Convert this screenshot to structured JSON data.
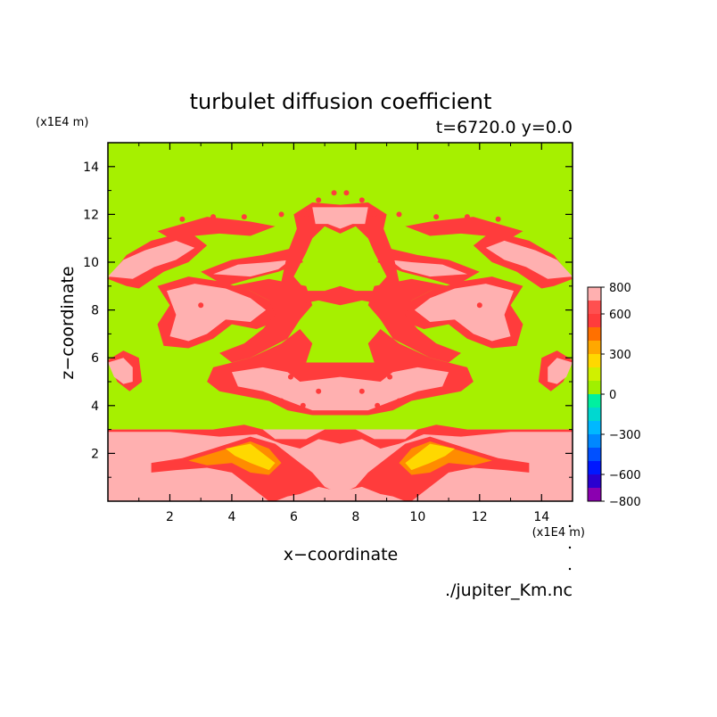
{
  "chart_data": {
    "type": "heatmap",
    "title": "turbulet diffusion coefficient",
    "subtitle": "t=6720.0 y=0.0",
    "xlabel": "x−coordinate",
    "ylabel": "z−coordinate",
    "x_unit": "(x1E4 m)",
    "y_unit": "(x1E4 m)",
    "xlim": [
      0,
      15
    ],
    "ylim": [
      0,
      15
    ],
    "x_ticks": [
      "2",
      "4",
      "6",
      "8",
      "10",
      "12",
      "14"
    ],
    "y_ticks": [
      "2",
      "4",
      "6",
      "8",
      "10",
      "12",
      "14"
    ],
    "source": "./jupiter_Km.nc",
    "colorbar": {
      "labels": [
        "800",
        "600",
        "300",
        "0",
        "−300",
        "−600",
        "−800"
      ],
      "levels": [
        -800,
        -700,
        -600,
        -500,
        -400,
        -300,
        -200,
        -100,
        0,
        100,
        200,
        300,
        400,
        500,
        600,
        700,
        800
      ],
      "colors": [
        "#8b00b0",
        "#2a00d0",
        "#0018ff",
        "#0050ff",
        "#0088ff",
        "#00b8ff",
        "#00d8d0",
        "#00f0a0",
        "#a0f000",
        "#d0f000",
        "#ffd800",
        "#ffa800",
        "#ff7000",
        "#ff3c3c",
        "#ff5050",
        "#ffb0b0"
      ]
    },
    "field_colors": {
      "background": "#a6f000",
      "level_yellow": "#ffd800",
      "level_orange": "#ff8c00",
      "level_red": "#ff3c3c",
      "level_pink": "#ffb0b0"
    },
    "symmetry": "mirror about x=7.5",
    "regions": [
      {
        "level": "red",
        "poly": [
          [
            0,
            9.3
          ],
          [
            0.6,
            10.3
          ],
          [
            1.4,
            10.9
          ],
          [
            2.6,
            11.3
          ],
          [
            3.2,
            10.7
          ],
          [
            2.6,
            10.0
          ],
          [
            1.8,
            9.6
          ],
          [
            1.0,
            8.9
          ],
          [
            0.6,
            9.0
          ]
        ]
      },
      {
        "level": "pink",
        "poly": [
          [
            0,
            9.4
          ],
          [
            0.5,
            10.1
          ],
          [
            1.2,
            10.5
          ],
          [
            2.2,
            10.9
          ],
          [
            2.8,
            10.6
          ],
          [
            2.2,
            10.1
          ],
          [
            1.5,
            9.8
          ],
          [
            0.8,
            9.3
          ]
        ]
      },
      {
        "level": "red",
        "poly": [
          [
            1.6,
            11.3
          ],
          [
            3.2,
            11.9
          ],
          [
            4.6,
            11.7
          ],
          [
            5.4,
            11.5
          ],
          [
            4.6,
            11.1
          ],
          [
            3.6,
            11.2
          ],
          [
            2.8,
            11.1
          ],
          [
            2.0,
            11.0
          ]
        ]
      },
      {
        "level": "red",
        "poly": [
          [
            3.0,
            9.6
          ],
          [
            4.0,
            10.1
          ],
          [
            5.0,
            10.3
          ],
          [
            6.0,
            10.6
          ],
          [
            6.3,
            10.0
          ],
          [
            5.5,
            9.6
          ],
          [
            4.6,
            9.3
          ],
          [
            3.8,
            9.0
          ]
        ]
      },
      {
        "level": "pink",
        "poly": [
          [
            3.4,
            9.5
          ],
          [
            4.2,
            9.9
          ],
          [
            5.2,
            10.0
          ],
          [
            5.9,
            10.1
          ],
          [
            5.5,
            9.7
          ],
          [
            4.6,
            9.4
          ]
        ]
      },
      {
        "level": "red",
        "poly": [
          [
            1.6,
            9.0
          ],
          [
            2.6,
            9.4
          ],
          [
            3.6,
            9.2
          ],
          [
            4.6,
            8.8
          ],
          [
            5.2,
            8.4
          ],
          [
            5.6,
            7.6
          ],
          [
            4.8,
            7.2
          ],
          [
            4.0,
            7.4
          ],
          [
            3.4,
            6.8
          ],
          [
            2.6,
            6.4
          ],
          [
            1.8,
            6.5
          ],
          [
            1.6,
            7.4
          ],
          [
            2.0,
            8.2
          ]
        ]
      },
      {
        "level": "pink",
        "poly": [
          [
            1.9,
            8.8
          ],
          [
            2.8,
            9.1
          ],
          [
            3.8,
            8.9
          ],
          [
            4.6,
            8.5
          ],
          [
            5.1,
            8.0
          ],
          [
            4.6,
            7.5
          ],
          [
            3.8,
            7.6
          ],
          [
            3.2,
            7.0
          ],
          [
            2.6,
            6.7
          ],
          [
            2.0,
            6.9
          ],
          [
            2.2,
            7.8
          ]
        ]
      },
      {
        "level": "red",
        "poly": [
          [
            0,
            5.9
          ],
          [
            0.5,
            6.3
          ],
          [
            1.0,
            6.0
          ],
          [
            1.1,
            5.0
          ],
          [
            0.7,
            4.6
          ],
          [
            0.3,
            5.0
          ]
        ]
      },
      {
        "level": "pink",
        "poly": [
          [
            0,
            5.8
          ],
          [
            0.5,
            6.0
          ],
          [
            0.8,
            5.6
          ],
          [
            0.8,
            5.0
          ],
          [
            0.5,
            4.9
          ],
          [
            0.2,
            5.2
          ]
        ]
      },
      {
        "level": "red",
        "poly": [
          [
            4.0,
            9.0
          ],
          [
            5.2,
            9.3
          ],
          [
            6.4,
            9.0
          ],
          [
            6.6,
            8.2
          ],
          [
            6.2,
            7.6
          ],
          [
            5.8,
            6.8
          ],
          [
            5.2,
            6.4
          ],
          [
            4.6,
            6.0
          ],
          [
            4.0,
            5.8
          ],
          [
            3.6,
            6.2
          ],
          [
            4.4,
            6.6
          ],
          [
            5.0,
            7.2
          ],
          [
            5.4,
            7.8
          ],
          [
            5.2,
            8.4
          ],
          [
            4.6,
            8.8
          ]
        ]
      },
      {
        "level": "red",
        "poly": [
          [
            6.0,
            12.0
          ],
          [
            6.6,
            12.5
          ],
          [
            7.5,
            12.4
          ],
          [
            7.5,
            11.2
          ],
          [
            7.0,
            11.5
          ],
          [
            6.6,
            11.0
          ],
          [
            6.4,
            10.4
          ],
          [
            6.0,
            9.4
          ],
          [
            6.4,
            8.8
          ],
          [
            7.0,
            8.8
          ],
          [
            7.5,
            9.0
          ],
          [
            7.5,
            8.2
          ],
          [
            6.8,
            8.4
          ],
          [
            6.0,
            8.2
          ],
          [
            5.6,
            9.2
          ],
          [
            5.8,
            10.4
          ],
          [
            6.1,
            11.4
          ]
        ]
      },
      {
        "level": "pink",
        "poly": [
          [
            6.6,
            12.3
          ],
          [
            7.5,
            12.3
          ],
          [
            7.5,
            11.4
          ],
          [
            7.1,
            11.6
          ],
          [
            6.7,
            11.6
          ]
        ]
      },
      {
        "level": "red",
        "poly": [
          [
            3.4,
            5.6
          ],
          [
            4.6,
            6.0
          ],
          [
            5.6,
            6.6
          ],
          [
            6.2,
            7.2
          ],
          [
            6.6,
            6.6
          ],
          [
            6.4,
            5.8
          ],
          [
            7.5,
            5.8
          ],
          [
            7.5,
            3.6
          ],
          [
            6.6,
            3.6
          ],
          [
            5.8,
            3.8
          ],
          [
            5.2,
            4.2
          ],
          [
            4.4,
            4.4
          ],
          [
            3.6,
            4.6
          ],
          [
            3.2,
            5.0
          ]
        ]
      },
      {
        "level": "pink",
        "poly": [
          [
            4.0,
            5.4
          ],
          [
            5.0,
            5.6
          ],
          [
            5.8,
            5.4
          ],
          [
            6.2,
            5.0
          ],
          [
            7.5,
            5.2
          ],
          [
            7.5,
            3.8
          ],
          [
            6.6,
            3.8
          ],
          [
            5.8,
            4.2
          ],
          [
            5.0,
            4.6
          ],
          [
            4.2,
            4.8
          ]
        ]
      },
      {
        "level": "pink",
        "poly": [
          [
            0,
            0
          ],
          [
            15,
            0
          ],
          [
            15,
            3.0
          ],
          [
            0,
            3.0
          ]
        ]
      },
      {
        "level": "red",
        "poly": [
          [
            1.4,
            1.6
          ],
          [
            2.4,
            1.8
          ],
          [
            3.4,
            2.2
          ],
          [
            4.6,
            2.7
          ],
          [
            5.4,
            2.4
          ],
          [
            6.0,
            1.8
          ],
          [
            6.6,
            1.2
          ],
          [
            7.0,
            0.6
          ],
          [
            7.5,
            0.3
          ],
          [
            7.5,
            0
          ],
          [
            5.2,
            0
          ],
          [
            4.6,
            0.6
          ],
          [
            4.0,
            1.2
          ],
          [
            3.2,
            1.4
          ],
          [
            2.2,
            1.3
          ],
          [
            1.4,
            1.2
          ]
        ]
      },
      {
        "level": "orange",
        "poly": [
          [
            2.6,
            1.7
          ],
          [
            3.6,
            2.1
          ],
          [
            4.6,
            2.5
          ],
          [
            5.2,
            2.2
          ],
          [
            5.6,
            1.6
          ],
          [
            5.2,
            1.1
          ],
          [
            4.6,
            1.2
          ],
          [
            4.0,
            1.6
          ],
          [
            3.2,
            1.5
          ]
        ]
      },
      {
        "level": "yellow",
        "poly": [
          [
            3.8,
            2.2
          ],
          [
            4.6,
            2.4
          ],
          [
            5.0,
            2.0
          ],
          [
            5.4,
            1.6
          ],
          [
            5.2,
            1.3
          ],
          [
            4.6,
            1.6
          ],
          [
            4.1,
            1.9
          ]
        ]
      },
      {
        "level": "pink",
        "poly": [
          [
            5.4,
            0
          ],
          [
            7.5,
            0
          ],
          [
            7.5,
            0.4
          ],
          [
            6.8,
            0.6
          ],
          [
            6.2,
            0.3
          ],
          [
            5.8,
            0.2
          ]
        ]
      },
      {
        "level": "red",
        "poly": [
          [
            0,
            3.0
          ],
          [
            3.4,
            3.0
          ],
          [
            4.4,
            3.2
          ],
          [
            5.0,
            3.0
          ],
          [
            5.4,
            2.6
          ],
          [
            6.4,
            2.6
          ],
          [
            7.0,
            3.0
          ],
          [
            7.5,
            3.0
          ],
          [
            7.5,
            2.4
          ],
          [
            6.8,
            2.6
          ],
          [
            6.2,
            2.2
          ],
          [
            5.6,
            2.4
          ],
          [
            4.8,
            2.8
          ],
          [
            3.6,
            2.7
          ],
          [
            2.0,
            2.9
          ],
          [
            0,
            2.9
          ]
        ]
      }
    ],
    "specks": [
      [
        2.4,
        11.8
      ],
      [
        3.4,
        11.9
      ],
      [
        4.4,
        11.9
      ],
      [
        5.6,
        12.0
      ],
      [
        6.4,
        12.0
      ],
      [
        6.8,
        12.6
      ],
      [
        7.3,
        12.9
      ],
      [
        3.0,
        8.2
      ],
      [
        5.6,
        4.2
      ],
      [
        6.3,
        4.0
      ],
      [
        6.8,
        4.6
      ],
      [
        5.9,
        5.2
      ]
    ]
  }
}
